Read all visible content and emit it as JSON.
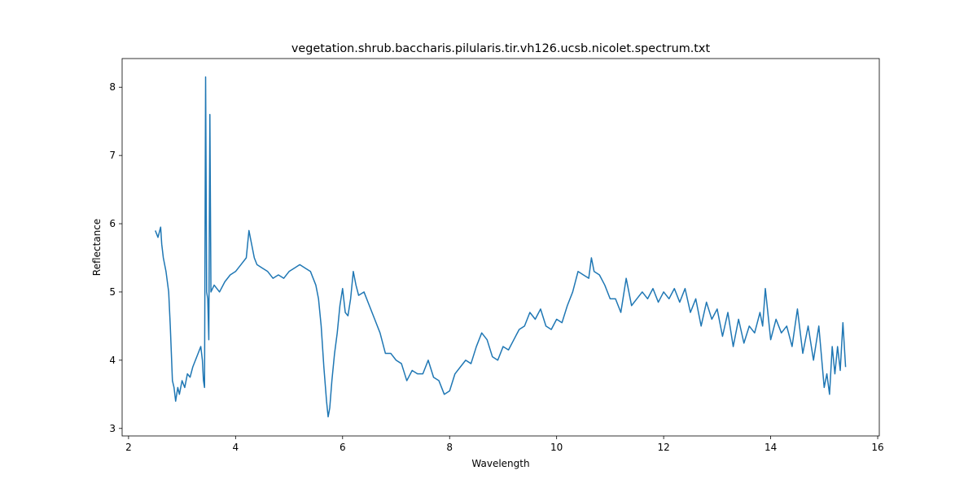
{
  "chart_data": {
    "type": "line",
    "title": "vegetation.shrub.baccharis.pilularis.tir.vh126.ucsb.nicolet.spectrum.txt",
    "x_label": "Wavelength",
    "y_label": "Reflectance",
    "color": "#1f77b4",
    "xlim": [
      1.88,
      16.03
    ],
    "ylim": [
      2.89,
      8.42
    ],
    "xticks": [
      2,
      4,
      6,
      8,
      10,
      12,
      14,
      16
    ],
    "yticks": [
      3,
      4,
      5,
      6,
      7,
      8
    ],
    "x": [
      2.5,
      2.55,
      2.6,
      2.62,
      2.65,
      2.7,
      2.75,
      2.78,
      2.8,
      2.82,
      2.85,
      2.88,
      2.92,
      2.95,
      3.0,
      3.05,
      3.1,
      3.15,
      3.2,
      3.25,
      3.3,
      3.35,
      3.38,
      3.4,
      3.42,
      3.44,
      3.46,
      3.48,
      3.5,
      3.52,
      3.54,
      3.6,
      3.7,
      3.8,
      3.9,
      4.0,
      4.1,
      4.2,
      4.25,
      4.3,
      4.35,
      4.4,
      4.5,
      4.6,
      4.7,
      4.8,
      4.9,
      5.0,
      5.1,
      5.2,
      5.3,
      5.4,
      5.5,
      5.55,
      5.6,
      5.65,
      5.7,
      5.73,
      5.76,
      5.8,
      5.85,
      5.9,
      5.95,
      6.0,
      6.05,
      6.1,
      6.15,
      6.2,
      6.25,
      6.3,
      6.4,
      6.5,
      6.6,
      6.7,
      6.8,
      6.9,
      7.0,
      7.1,
      7.2,
      7.3,
      7.4,
      7.5,
      7.6,
      7.7,
      7.8,
      7.9,
      8.0,
      8.1,
      8.2,
      8.3,
      8.4,
      8.5,
      8.6,
      8.7,
      8.8,
      8.9,
      9.0,
      9.1,
      9.2,
      9.3,
      9.4,
      9.5,
      9.6,
      9.7,
      9.8,
      9.9,
      10.0,
      10.1,
      10.2,
      10.3,
      10.4,
      10.5,
      10.6,
      10.65,
      10.7,
      10.8,
      10.9,
      11.0,
      11.1,
      11.2,
      11.3,
      11.4,
      11.5,
      11.6,
      11.7,
      11.8,
      11.9,
      12.0,
      12.1,
      12.2,
      12.3,
      12.4,
      12.5,
      12.6,
      12.7,
      12.8,
      12.9,
      13.0,
      13.1,
      13.2,
      13.3,
      13.4,
      13.5,
      13.6,
      13.7,
      13.8,
      13.85,
      13.9,
      14.0,
      14.1,
      14.2,
      14.3,
      14.4,
      14.5,
      14.6,
      14.7,
      14.8,
      14.9,
      15.0,
      15.05,
      15.1,
      15.15,
      15.2,
      15.25,
      15.3,
      15.35,
      15.4
    ],
    "values": [
      5.9,
      5.8,
      5.95,
      5.7,
      5.5,
      5.3,
      5.0,
      4.5,
      4.1,
      3.7,
      3.6,
      3.4,
      3.6,
      3.5,
      3.7,
      3.6,
      3.8,
      3.75,
      3.9,
      4.0,
      4.1,
      4.2,
      4.0,
      3.7,
      3.6,
      8.15,
      5.0,
      4.9,
      4.3,
      7.6,
      5.0,
      5.1,
      5.0,
      5.15,
      5.25,
      5.3,
      5.4,
      5.5,
      5.9,
      5.7,
      5.5,
      5.4,
      5.35,
      5.3,
      5.2,
      5.25,
      5.2,
      5.3,
      5.35,
      5.4,
      5.35,
      5.3,
      5.1,
      4.9,
      4.5,
      3.9,
      3.4,
      3.17,
      3.3,
      3.7,
      4.1,
      4.4,
      4.8,
      5.05,
      4.7,
      4.65,
      4.9,
      5.3,
      5.1,
      4.95,
      5.0,
      4.8,
      4.6,
      4.4,
      4.1,
      4.1,
      4.0,
      3.95,
      3.7,
      3.85,
      3.8,
      3.8,
      4.0,
      3.75,
      3.7,
      3.5,
      3.55,
      3.8,
      3.9,
      4.0,
      3.95,
      4.2,
      4.4,
      4.3,
      4.05,
      4.0,
      4.2,
      4.15,
      4.3,
      4.45,
      4.5,
      4.7,
      4.6,
      4.75,
      4.5,
      4.45,
      4.6,
      4.55,
      4.8,
      5.0,
      5.3,
      5.25,
      5.2,
      5.5,
      5.3,
      5.25,
      5.1,
      4.9,
      4.9,
      4.7,
      5.2,
      4.8,
      4.9,
      5.0,
      4.9,
      5.05,
      4.85,
      5.0,
      4.9,
      5.05,
      4.85,
      5.05,
      4.7,
      4.9,
      4.5,
      4.85,
      4.6,
      4.75,
      4.35,
      4.7,
      4.2,
      4.6,
      4.25,
      4.5,
      4.4,
      4.7,
      4.5,
      5.05,
      4.3,
      4.6,
      4.4,
      4.5,
      4.2,
      4.75,
      4.1,
      4.5,
      4.0,
      4.5,
      3.6,
      3.8,
      3.5,
      4.2,
      3.8,
      4.2,
      3.85,
      4.55,
      3.9
    ]
  }
}
